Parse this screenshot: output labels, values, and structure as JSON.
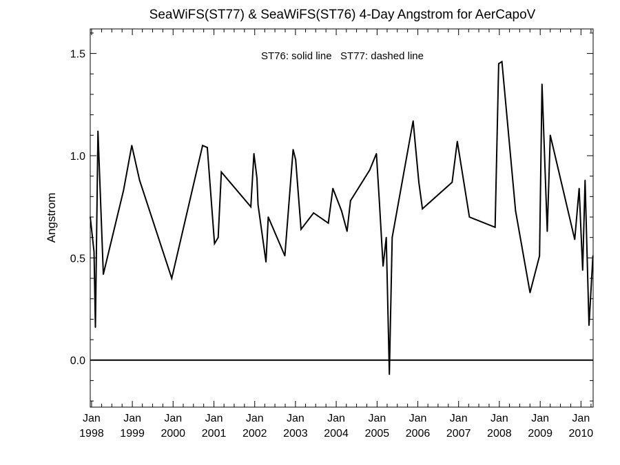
{
  "chart_data": {
    "type": "line",
    "title": "SeaWiFS(ST77) & SeaWiFS(ST76) 4-Day Angstrom for AerCapoV",
    "annotation": "ST76: solid line   ST77: dashed line",
    "xlabel": "",
    "ylabel": "Angstrom",
    "xlim": [
      "1997-12-20",
      "2010-04-20"
    ],
    "ylim": [
      -0.23,
      1.62
    ],
    "y_ticks": [
      "0.0",
      "0.5",
      "1.0",
      "1.5"
    ],
    "x_ticks": [
      {
        "date": "1998-01-01",
        "month": "Jan",
        "year": "1998"
      },
      {
        "date": "1999-01-01",
        "month": "Jan",
        "year": "1999"
      },
      {
        "date": "2000-01-01",
        "month": "Jan",
        "year": "2000"
      },
      {
        "date": "2001-01-01",
        "month": "Jan",
        "year": "2001"
      },
      {
        "date": "2002-01-01",
        "month": "Jan",
        "year": "2002"
      },
      {
        "date": "2003-01-01",
        "month": "Jan",
        "year": "2003"
      },
      {
        "date": "2004-01-01",
        "month": "Jan",
        "year": "2004"
      },
      {
        "date": "2005-01-01",
        "month": "Jan",
        "year": "2005"
      },
      {
        "date": "2006-01-01",
        "month": "Jan",
        "year": "2006"
      },
      {
        "date": "2007-01-01",
        "month": "Jan",
        "year": "2007"
      },
      {
        "date": "2008-01-01",
        "month": "Jan",
        "year": "2008"
      },
      {
        "date": "2009-01-01",
        "month": "Jan",
        "year": "2009"
      },
      {
        "date": "2010-01-01",
        "month": "Jan",
        "year": "2010"
      }
    ],
    "grid": false,
    "reference_line": 0.0,
    "series": [
      {
        "name": "ST76",
        "style": "solid",
        "color": "#000000",
        "points": [
          [
            "1997-12-20",
            0.7
          ],
          [
            "1998-01-23",
            0.53
          ],
          [
            "1998-02-04",
            0.16
          ],
          [
            "1998-02-27",
            1.12
          ],
          [
            "1998-04-16",
            0.42
          ],
          [
            "1998-10-14",
            0.83
          ],
          [
            "1998-12-27",
            1.05
          ],
          [
            "1999-03-07",
            0.88
          ],
          [
            "1999-12-20",
            0.4
          ],
          [
            "2000-09-21",
            1.05
          ],
          [
            "2000-11-02",
            1.04
          ],
          [
            "2001-01-06",
            0.57
          ],
          [
            "2001-02-08",
            0.6
          ],
          [
            "2001-03-08",
            0.92
          ],
          [
            "2001-11-27",
            0.75
          ],
          [
            "2001-12-25",
            1.01
          ],
          [
            "2002-01-21",
            0.89
          ],
          [
            "2002-01-31",
            0.76
          ],
          [
            "2002-04-12",
            0.48
          ],
          [
            "2002-05-02",
            0.7
          ],
          [
            "2002-09-28",
            0.51
          ],
          [
            "2002-12-11",
            1.03
          ],
          [
            "2003-01-03",
            0.98
          ],
          [
            "2003-02-20",
            0.64
          ],
          [
            "2003-06-12",
            0.72
          ],
          [
            "2003-10-22",
            0.67
          ],
          [
            "2003-12-02",
            0.84
          ],
          [
            "2004-02-18",
            0.73
          ],
          [
            "2004-04-07",
            0.63
          ],
          [
            "2004-05-08",
            0.78
          ],
          [
            "2004-10-27",
            0.93
          ],
          [
            "2004-12-26",
            1.01
          ],
          [
            "2005-01-22",
            0.77
          ],
          [
            "2005-02-24",
            0.46
          ],
          [
            "2005-03-24",
            0.6
          ],
          [
            "2005-04-21",
            -0.07
          ],
          [
            "2005-05-16",
            0.6
          ],
          [
            "2005-11-20",
            1.17
          ],
          [
            "2006-01-10",
            0.87
          ],
          [
            "2006-02-11",
            0.74
          ],
          [
            "2006-11-04",
            0.87
          ],
          [
            "2006-12-20",
            1.07
          ],
          [
            "2007-04-08",
            0.7
          ],
          [
            "2007-11-24",
            0.65
          ],
          [
            "2007-12-26",
            1.45
          ],
          [
            "2008-01-24",
            1.46
          ],
          [
            "2008-05-25",
            0.73
          ],
          [
            "2008-10-02",
            0.33
          ],
          [
            "2008-12-26",
            0.51
          ],
          [
            "2009-01-17",
            1.35
          ],
          [
            "2009-03-05",
            0.63
          ],
          [
            "2009-04-01",
            1.1
          ],
          [
            "2009-11-06",
            0.59
          ],
          [
            "2009-12-16",
            0.84
          ],
          [
            "2010-01-16",
            0.44
          ],
          [
            "2010-02-07",
            0.88
          ],
          [
            "2010-03-14",
            0.17
          ],
          [
            "2010-04-18",
            0.51
          ]
        ]
      },
      {
        "name": "ST77",
        "style": "dashed",
        "color": "#000000",
        "points": []
      }
    ]
  }
}
